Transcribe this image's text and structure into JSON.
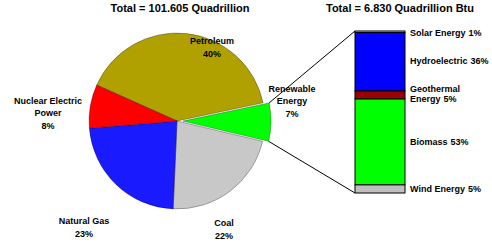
{
  "chart_data": [
    {
      "type": "pie",
      "title": "Total = 101.605 Quadrillion",
      "categories": [
        "Petroleum",
        "Renewable Energy",
        "Coal",
        "Natural Gas",
        "Nuclear Electric Power"
      ],
      "values": [
        40,
        7,
        22,
        23,
        8
      ],
      "value_labels": [
        "40%",
        "7%",
        "22%",
        "23%",
        "8%"
      ],
      "colors": [
        "#b0a000",
        "#00ff00",
        "#c8c8c8",
        "#1a1aff",
        "#ff0000"
      ],
      "data_labels": true
    },
    {
      "type": "bar",
      "title": "Total = 6.830 Quadrillion Btu",
      "categories": [
        "Solar Energy",
        "Hydroelectric",
        "Geothermal Energy",
        "Biomass",
        "Wind Energy"
      ],
      "values": [
        1,
        36,
        5,
        53,
        5
      ],
      "value_labels": [
        "1%",
        "36%",
        "5%",
        "53%",
        "5%"
      ],
      "colors": [
        "#c0c0c0",
        "#0000ff",
        "#990000",
        "#00ff00",
        "#c0c0c0"
      ],
      "stacked": true,
      "tick_labels": false,
      "data_labels": true
    }
  ]
}
